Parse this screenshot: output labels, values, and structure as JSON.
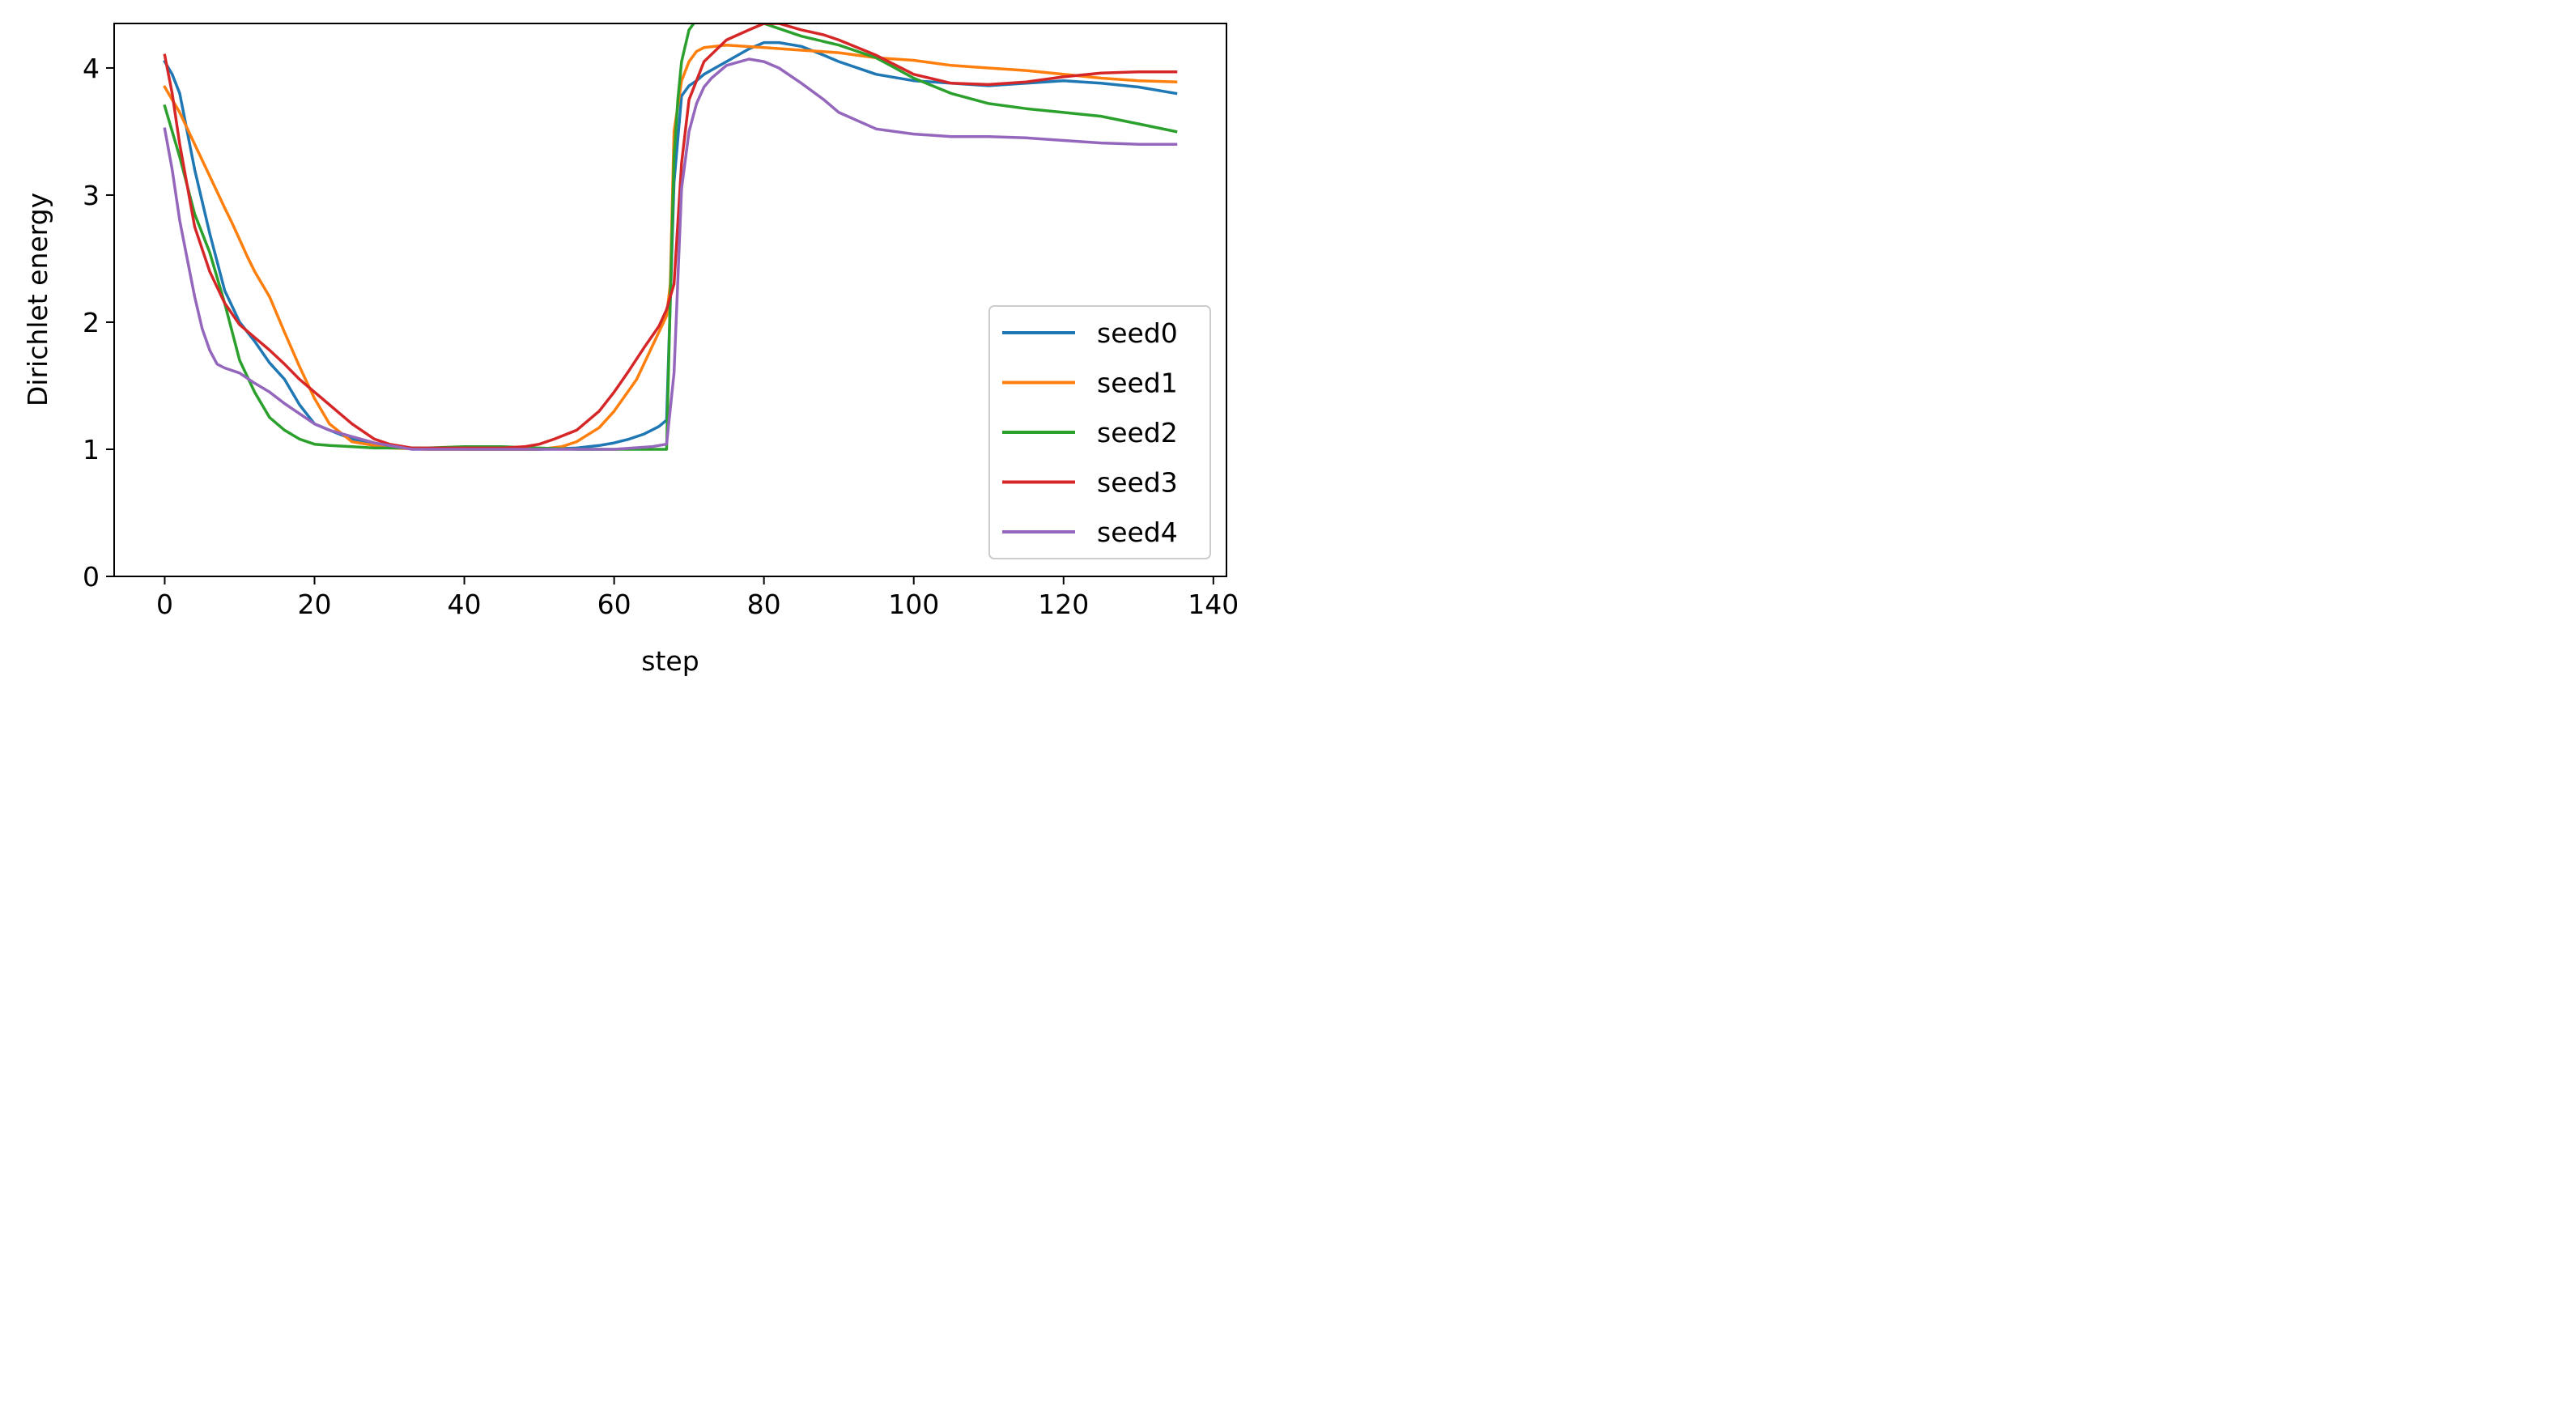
{
  "chart_data": {
    "type": "line",
    "title": "",
    "xlabel": "step",
    "ylabel": "Dirichlet energy",
    "xlim": [
      -6.75,
      141.75
    ],
    "ylim": [
      0,
      4.35
    ],
    "xticks": [
      0,
      20,
      40,
      60,
      80,
      100,
      120,
      140
    ],
    "yticks": [
      0,
      1,
      2,
      3,
      4
    ],
    "grid": false,
    "legend_position": "lower right",
    "series": [
      {
        "name": "seed0",
        "color": "#1f77b4",
        "x": [
          0,
          1,
          2,
          4,
          6,
          8,
          10,
          12,
          14,
          16,
          18,
          20,
          22,
          25,
          28,
          30,
          33,
          40,
          50,
          55,
          58,
          60,
          62,
          64,
          65,
          66,
          67,
          68,
          69,
          70,
          71,
          72,
          75,
          78,
          80,
          82,
          85,
          88,
          90,
          95,
          100,
          105,
          110,
          115,
          120,
          125,
          130,
          135
        ],
        "y": [
          4.05,
          3.95,
          3.8,
          3.2,
          2.7,
          2.25,
          2.0,
          1.85,
          1.68,
          1.55,
          1.35,
          1.2,
          1.15,
          1.08,
          1.04,
          1.02,
          1.01,
          1.0,
          1.0,
          1.01,
          1.03,
          1.05,
          1.08,
          1.12,
          1.15,
          1.18,
          1.23,
          3.1,
          3.78,
          3.86,
          3.9,
          3.95,
          4.05,
          4.15,
          4.2,
          4.2,
          4.17,
          4.1,
          4.05,
          3.95,
          3.9,
          3.88,
          3.86,
          3.88,
          3.9,
          3.88,
          3.85,
          3.8
        ]
      },
      {
        "name": "seed1",
        "color": "#ff7f0e",
        "x": [
          0,
          2,
          4,
          6,
          8,
          9,
          10,
          11,
          12,
          13,
          14,
          16,
          18,
          20,
          22,
          25,
          30,
          35,
          40,
          45,
          50,
          53,
          55,
          58,
          60,
          63,
          65,
          67,
          67.5,
          68,
          69,
          70,
          71,
          72,
          75,
          80,
          85,
          90,
          95,
          100,
          105,
          110,
          115,
          120,
          125,
          130,
          135
        ],
        "y": [
          3.85,
          3.65,
          3.4,
          3.15,
          2.9,
          2.78,
          2.65,
          2.52,
          2.4,
          2.3,
          2.2,
          1.92,
          1.65,
          1.4,
          1.2,
          1.06,
          1.01,
          1.0,
          1.0,
          1.0,
          1.0,
          1.02,
          1.06,
          1.17,
          1.3,
          1.55,
          1.8,
          2.05,
          2.3,
          3.5,
          3.9,
          4.05,
          4.13,
          4.16,
          4.18,
          4.16,
          4.14,
          4.12,
          4.08,
          4.06,
          4.02,
          4.0,
          3.98,
          3.95,
          3.92,
          3.9,
          3.89
        ]
      },
      {
        "name": "seed2",
        "color": "#2ca02c",
        "x": [
          0,
          2,
          4,
          6,
          8,
          10,
          12,
          14,
          16,
          18,
          20,
          22,
          25,
          28,
          30,
          35,
          40,
          45,
          50,
          55,
          60,
          65,
          66,
          67,
          67.5,
          68,
          68.5,
          69,
          70,
          71,
          72,
          75,
          80,
          85,
          90,
          95,
          100,
          105,
          110,
          115,
          120,
          125,
          130,
          135
        ],
        "y": [
          3.7,
          3.3,
          2.85,
          2.55,
          2.15,
          1.7,
          1.45,
          1.25,
          1.15,
          1.08,
          1.04,
          1.03,
          1.02,
          1.01,
          1.01,
          1.01,
          1.02,
          1.02,
          1.01,
          1.0,
          1.0,
          1.0,
          1.0,
          1.0,
          2.2,
          3.3,
          3.75,
          4.05,
          4.3,
          4.38,
          4.45,
          4.42,
          4.35,
          4.25,
          4.18,
          4.08,
          3.92,
          3.8,
          3.72,
          3.68,
          3.65,
          3.62,
          3.56,
          3.5
        ]
      },
      {
        "name": "seed3",
        "color": "#d62728",
        "x": [
          0,
          1,
          2,
          4,
          6,
          8,
          10,
          12,
          14,
          16,
          18,
          20,
          22,
          25,
          28,
          30,
          33,
          40,
          45,
          48,
          50,
          52,
          55,
          58,
          60,
          62,
          64,
          66,
          67,
          68,
          69,
          70,
          72,
          75,
          78,
          80,
          82,
          85,
          88,
          90,
          95,
          100,
          105,
          110,
          115,
          120,
          125,
          130,
          135
        ],
        "y": [
          4.1,
          3.8,
          3.4,
          2.75,
          2.4,
          2.15,
          1.98,
          1.88,
          1.78,
          1.67,
          1.55,
          1.45,
          1.35,
          1.2,
          1.08,
          1.04,
          1.01,
          1.01,
          1.01,
          1.02,
          1.04,
          1.08,
          1.15,
          1.3,
          1.45,
          1.62,
          1.8,
          1.97,
          2.1,
          2.3,
          3.25,
          3.75,
          4.05,
          4.22,
          4.3,
          4.35,
          4.35,
          4.3,
          4.26,
          4.22,
          4.1,
          3.95,
          3.88,
          3.87,
          3.89,
          3.93,
          3.96,
          3.97,
          3.97
        ]
      },
      {
        "name": "seed4",
        "color": "#9467bd",
        "x": [
          0,
          1,
          2,
          3,
          4,
          5,
          6,
          7,
          8,
          10,
          12,
          14,
          16,
          18,
          20,
          22,
          25,
          28,
          30,
          33,
          40,
          50,
          60,
          65,
          67,
          68,
          69,
          70,
          71,
          72,
          73,
          75,
          78,
          80,
          82,
          85,
          88,
          90,
          95,
          100,
          105,
          110,
          115,
          120,
          125,
          130,
          135
        ],
        "y": [
          3.52,
          3.2,
          2.8,
          2.5,
          2.2,
          1.95,
          1.78,
          1.67,
          1.64,
          1.6,
          1.52,
          1.45,
          1.36,
          1.28,
          1.2,
          1.15,
          1.1,
          1.05,
          1.03,
          1.0,
          1.0,
          1.0,
          1.0,
          1.02,
          1.04,
          1.6,
          3.05,
          3.5,
          3.72,
          3.85,
          3.92,
          4.02,
          4.07,
          4.05,
          4.0,
          3.88,
          3.75,
          3.65,
          3.52,
          3.48,
          3.46,
          3.46,
          3.45,
          3.43,
          3.41,
          3.4,
          3.4
        ]
      }
    ]
  }
}
